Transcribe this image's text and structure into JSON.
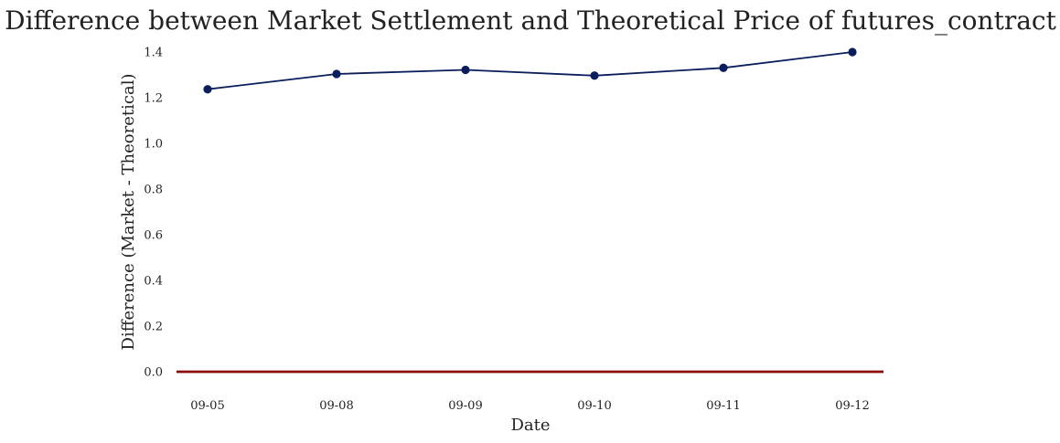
{
  "chart_data": {
    "type": "line",
    "title": "Difference between Market Settlement and Theoretical Price of futures_contract",
    "xlabel": "Date",
    "ylabel": "Difference (Market - Theoretical)",
    "categories": [
      "09-05",
      "09-08",
      "09-09",
      "09-10",
      "09-11",
      "09-12"
    ],
    "series": [
      {
        "values": [
          1.237,
          1.304,
          1.322,
          1.297,
          1.331,
          1.4
        ],
        "color": "#0a1d5c",
        "marker": "circle"
      }
    ],
    "reference_line": {
      "y": 0,
      "color": "#8b0a0a"
    },
    "ylim": [
      -0.07,
      1.42
    ],
    "yticks": [
      0.0,
      0.2,
      0.4,
      0.6,
      0.8,
      1.0,
      1.2,
      1.4
    ],
    "grid": false
  }
}
